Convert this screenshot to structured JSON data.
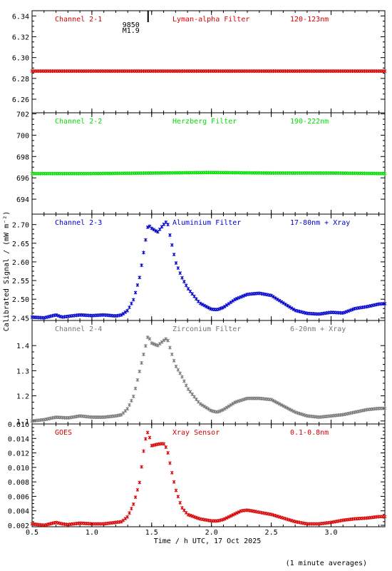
{
  "chart_data": [
    {
      "type": "scatter",
      "panel": "Channel 2-1",
      "channel": "Channel 2-1",
      "filter": "Lyman-alpha Filter",
      "band": "120-123nm",
      "color": "#d60000",
      "ylim": [
        6.247,
        6.345
      ],
      "yticks": [
        6.26,
        6.28,
        6.3,
        6.32,
        6.34
      ],
      "yticklabels": [
        "6.26",
        "6.28",
        "6.30",
        "6.32",
        "6.34"
      ],
      "flare_marker": {
        "x": 1.47,
        "label1": "9850",
        "label2": "M1.9"
      },
      "series": [
        {
          "points": [
            [
              0.5,
              6.287
            ],
            [
              1.0,
              6.287
            ],
            [
              1.5,
              6.287
            ],
            [
              2.0,
              6.287
            ],
            [
              2.5,
              6.287
            ],
            [
              3.0,
              6.287
            ],
            [
              3.45,
              6.287
            ]
          ]
        }
      ]
    },
    {
      "type": "scatter",
      "panel": "Channel 2-2",
      "channel": "Channel 2-2",
      "filter": "Herzberg Filter",
      "band": "190-222nm",
      "color": "#00dd00",
      "ylim": [
        692.6,
        702.1
      ],
      "yticks": [
        694,
        696,
        698,
        700,
        702
      ],
      "yticklabels": [
        "694",
        "696",
        "698",
        "700",
        "702"
      ],
      "series": [
        {
          "points": [
            [
              0.5,
              696.4
            ],
            [
              1.0,
              696.4
            ],
            [
              1.5,
              696.45
            ],
            [
              2.0,
              696.5
            ],
            [
              2.5,
              696.45
            ],
            [
              3.0,
              696.45
            ],
            [
              3.45,
              696.4
            ]
          ]
        }
      ]
    },
    {
      "type": "scatter",
      "panel": "Channel 2-3",
      "channel": "Channel 2-3",
      "filter": "Aluminium Filter",
      "band": "17-80nm + Xray",
      "color": "#0000cc",
      "ylim": [
        2.443,
        2.728
      ],
      "yticks": [
        2.45,
        2.5,
        2.55,
        2.6,
        2.65,
        2.7
      ],
      "yticklabels": [
        "2.45",
        "2.50",
        "2.55",
        "2.60",
        "2.65",
        "2.70"
      ],
      "series": [
        {
          "points": [
            [
              0.5,
              2.452
            ],
            [
              0.6,
              2.45
            ],
            [
              0.7,
              2.458
            ],
            [
              0.75,
              2.452
            ],
            [
              0.8,
              2.454
            ],
            [
              0.9,
              2.458
            ],
            [
              1.0,
              2.456
            ],
            [
              1.1,
              2.458
            ],
            [
              1.2,
              2.455
            ],
            [
              1.25,
              2.458
            ],
            [
              1.3,
              2.47
            ],
            [
              1.35,
              2.5
            ],
            [
              1.4,
              2.56
            ],
            [
              1.45,
              2.66
            ],
            [
              1.47,
              2.7
            ],
            [
              1.5,
              2.69
            ],
            [
              1.55,
              2.68
            ],
            [
              1.6,
              2.7
            ],
            [
              1.63,
              2.71
            ],
            [
              1.66,
              2.66
            ],
            [
              1.7,
              2.6
            ],
            [
              1.75,
              2.56
            ],
            [
              1.8,
              2.53
            ],
            [
              1.9,
              2.49
            ],
            [
              2.0,
              2.473
            ],
            [
              2.05,
              2.472
            ],
            [
              2.1,
              2.478
            ],
            [
              2.2,
              2.5
            ],
            [
              2.3,
              2.513
            ],
            [
              2.4,
              2.516
            ],
            [
              2.5,
              2.51
            ],
            [
              2.6,
              2.49
            ],
            [
              2.7,
              2.47
            ],
            [
              2.8,
              2.462
            ],
            [
              2.9,
              2.46
            ],
            [
              3.0,
              2.465
            ],
            [
              3.1,
              2.463
            ],
            [
              3.2,
              2.475
            ],
            [
              3.3,
              2.48
            ],
            [
              3.4,
              2.487
            ],
            [
              3.45,
              2.488
            ]
          ]
        }
      ]
    },
    {
      "type": "scatter",
      "panel": "Channel 2-4",
      "channel": "Channel 2-4",
      "filter": "Zirconium Filter",
      "band": "6-20nm + Xray",
      "color": "#777777",
      "ylim": [
        1.088,
        1.5
      ],
      "yticks": [
        1.1,
        1.2,
        1.3,
        1.4
      ],
      "yticklabels": [
        "1.1",
        "1.2",
        "1.3",
        "1.4"
      ],
      "series": [
        {
          "points": [
            [
              0.5,
              1.1
            ],
            [
              0.6,
              1.105
            ],
            [
              0.7,
              1.115
            ],
            [
              0.8,
              1.112
            ],
            [
              0.9,
              1.12
            ],
            [
              1.0,
              1.115
            ],
            [
              1.1,
              1.115
            ],
            [
              1.2,
              1.12
            ],
            [
              1.25,
              1.125
            ],
            [
              1.3,
              1.15
            ],
            [
              1.35,
              1.2
            ],
            [
              1.4,
              1.3
            ],
            [
              1.45,
              1.4
            ],
            [
              1.47,
              1.44
            ],
            [
              1.5,
              1.41
            ],
            [
              1.55,
              1.4
            ],
            [
              1.6,
              1.42
            ],
            [
              1.63,
              1.43
            ],
            [
              1.66,
              1.38
            ],
            [
              1.7,
              1.32
            ],
            [
              1.75,
              1.28
            ],
            [
              1.8,
              1.23
            ],
            [
              1.9,
              1.17
            ],
            [
              2.0,
              1.14
            ],
            [
              2.05,
              1.135
            ],
            [
              2.1,
              1.145
            ],
            [
              2.2,
              1.175
            ],
            [
              2.3,
              1.19
            ],
            [
              2.4,
              1.19
            ],
            [
              2.5,
              1.185
            ],
            [
              2.6,
              1.16
            ],
            [
              2.7,
              1.135
            ],
            [
              2.8,
              1.12
            ],
            [
              2.9,
              1.115
            ],
            [
              3.0,
              1.12
            ],
            [
              3.1,
              1.125
            ],
            [
              3.2,
              1.135
            ],
            [
              3.3,
              1.145
            ],
            [
              3.4,
              1.15
            ],
            [
              3.45,
              1.15
            ]
          ]
        }
      ]
    },
    {
      "type": "scatter",
      "panel": "GOES",
      "channel": "GOES",
      "filter": "Xray Sensor",
      "band": "0.1-0.8nm",
      "color": "#d60000",
      "ylim": [
        0.0018,
        0.016
      ],
      "yticks": [
        0.002,
        0.004,
        0.006,
        0.008,
        0.01,
        0.012,
        0.014,
        0.016
      ],
      "yticklabels": [
        "0.002",
        "0.004",
        "0.006",
        "0.008",
        "0.010",
        "0.012",
        "0.014",
        "0.016"
      ],
      "xlim": [
        0.5,
        3.45
      ],
      "xticks": [
        0.5,
        1.0,
        1.5,
        2.0,
        2.5,
        3.0
      ],
      "xticklabels": [
        "0.5",
        "1.0",
        "1.5",
        "2.0",
        "2.5",
        "3.0"
      ],
      "series": [
        {
          "points": [
            [
              0.5,
              0.0022
            ],
            [
              0.6,
              0.002
            ],
            [
              0.7,
              0.0024
            ],
            [
              0.75,
              0.0022
            ],
            [
              0.8,
              0.0021
            ],
            [
              0.9,
              0.0023
            ],
            [
              1.0,
              0.0022
            ],
            [
              1.1,
              0.0022
            ],
            [
              1.2,
              0.0024
            ],
            [
              1.25,
              0.0025
            ],
            [
              1.3,
              0.0032
            ],
            [
              1.35,
              0.005
            ],
            [
              1.4,
              0.008
            ],
            [
              1.43,
              0.012
            ],
            [
              1.45,
              0.014
            ],
            [
              1.47,
              0.015
            ],
            [
              1.5,
              0.013
            ],
            [
              1.55,
              0.0132
            ],
            [
              1.6,
              0.0133
            ],
            [
              1.63,
              0.0125
            ],
            [
              1.66,
              0.01
            ],
            [
              1.7,
              0.007
            ],
            [
              1.75,
              0.0045
            ],
            [
              1.8,
              0.0035
            ],
            [
              1.9,
              0.0029
            ],
            [
              2.0,
              0.0026
            ],
            [
              2.05,
              0.0026
            ],
            [
              2.1,
              0.0028
            ],
            [
              2.2,
              0.0036
            ],
            [
              2.25,
              0.004
            ],
            [
              2.3,
              0.0041
            ],
            [
              2.4,
              0.0038
            ],
            [
              2.5,
              0.0035
            ],
            [
              2.6,
              0.003
            ],
            [
              2.7,
              0.0025
            ],
            [
              2.8,
              0.0022
            ],
            [
              2.9,
              0.0022
            ],
            [
              3.0,
              0.0024
            ],
            [
              3.1,
              0.0027
            ],
            [
              3.2,
              0.0029
            ],
            [
              3.3,
              0.003
            ],
            [
              3.4,
              0.0032
            ],
            [
              3.45,
              0.0032
            ]
          ]
        }
      ]
    }
  ],
  "xlabel": "Time / h UTC, 17 Oct 2025",
  "ylabel": "Calibrated Signal / (mW m⁻²)",
  "footer_note": "(1 minute averages)"
}
